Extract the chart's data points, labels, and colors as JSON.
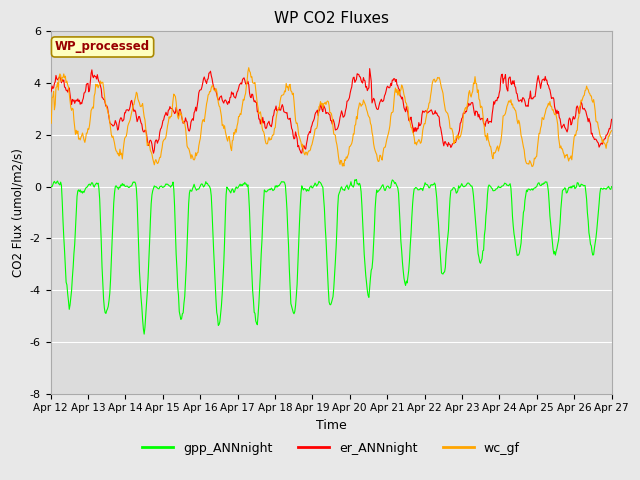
{
  "title": "WP CO2 Fluxes",
  "xlabel": "Time",
  "ylabel_display": "CO2 Flux (umol/m2/s)",
  "ylim": [
    -8,
    6
  ],
  "ytick_values": [
    -8,
    -6,
    -4,
    -2,
    0,
    2,
    4,
    6
  ],
  "xtick_labels": [
    "Apr 12",
    "Apr 13",
    "Apr 14",
    "Apr 15",
    "Apr 16",
    "Apr 17",
    "Apr 18",
    "Apr 19",
    "Apr 20",
    "Apr 21",
    "Apr 22",
    "Apr 23",
    "Apr 24",
    "Apr 25",
    "Apr 26",
    "Apr 27"
  ],
  "line_green_color": "#00FF00",
  "line_red_color": "#FF0000",
  "line_orange_color": "#FFA500",
  "legend_labels": [
    "gpp_ANNnight",
    "er_ANNnight",
    "wc_gf"
  ],
  "legend_colors": [
    "#00FF00",
    "#FF0000",
    "#FFA500"
  ],
  "annotation_text": "WP_processed",
  "annotation_bg": "#FFFFC0",
  "annotation_fg": "#990000",
  "fig_bg_color": "#E8E8E8",
  "plot_bg": "#DCDCDC",
  "grid_color": "#FFFFFF",
  "n_points": 720,
  "n_days": 15
}
